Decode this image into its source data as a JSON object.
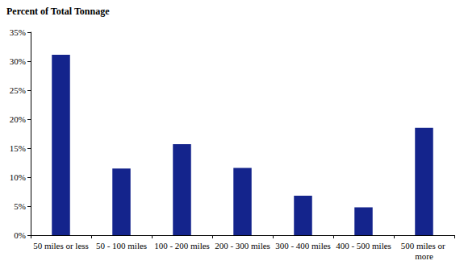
{
  "chart_data": {
    "type": "bar",
    "ylabel": "Percent of Total Tonnage",
    "categories": [
      "50 miles or less",
      "50 - 100 miles",
      "100 - 200 miles",
      "200 - 300 miles",
      "300 - 400 miles",
      "400 - 500 miles",
      "500 miles or more"
    ],
    "values": [
      31.1,
      11.5,
      15.7,
      11.6,
      6.8,
      4.8,
      18.5
    ],
    "color": "#14248c",
    "ylim": [
      0,
      35
    ],
    "yticks": [
      {
        "value": 0,
        "label": "0%"
      },
      {
        "value": 5,
        "label": "5%"
      },
      {
        "value": 10,
        "label": "10%"
      },
      {
        "value": 15,
        "label": "15%"
      },
      {
        "value": 20,
        "label": "20%"
      },
      {
        "value": 25,
        "label": "25%"
      },
      {
        "value": 30,
        "label": "30%"
      },
      {
        "value": 35,
        "label": "35%"
      }
    ],
    "grid": false
  }
}
